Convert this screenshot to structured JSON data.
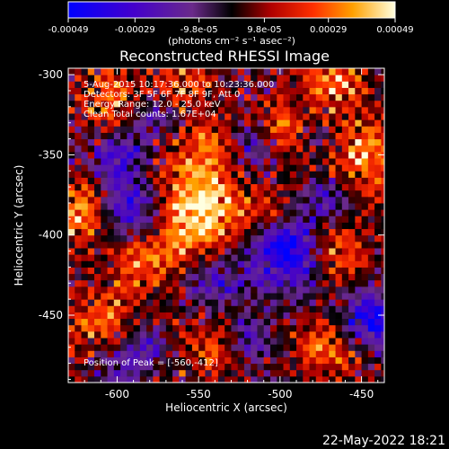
{
  "colorbar": {
    "ticks": [
      "-0.00049",
      "-0.00029",
      "-9.8e-05",
      "9.8e-05",
      "0.00029",
      "0.00049"
    ],
    "tick_values": [
      -0.00049,
      -0.00029,
      -9.8e-05,
      9.8e-05,
      0.00029,
      0.00049
    ],
    "range": [
      -0.00049,
      0.00049
    ],
    "unit_label": "(photons cm⁻² s⁻¹ asec⁻²)"
  },
  "chart_data": {
    "type": "heatmap",
    "title": "Reconstructed RHESSI Image",
    "xlabel": "Heliocentric X (arcsec)",
    "ylabel": "Heliocentric Y (arcsec)",
    "xlim": [
      -630,
      -436
    ],
    "ylim": [
      -492,
      -296
    ],
    "x_ticks": [
      "-600",
      "-550",
      "-500",
      "-450"
    ],
    "x_tick_values": [
      -600,
      -550,
      -500,
      -450
    ],
    "y_ticks": [
      "-300",
      "-350",
      "-400",
      "-450"
    ],
    "y_tick_values": [
      -300,
      -350,
      -400,
      -450
    ],
    "annotations": {
      "time_range": "5-Aug-2015 10:17:36.000 to 10:23:36.000",
      "detectors": "Detectors: 3F 5F 6F 7F 8F 9F, Att 0",
      "energy": "Energy Range: 12.0 - 25.0 keV",
      "method": "Clean    Total counts: 1.67E+04",
      "peak": "Position of Peak = [-560,-412]"
    },
    "peak_position": [
      -560,
      -412
    ]
  },
  "footer": {
    "date": "22-May-2022 18:21"
  }
}
